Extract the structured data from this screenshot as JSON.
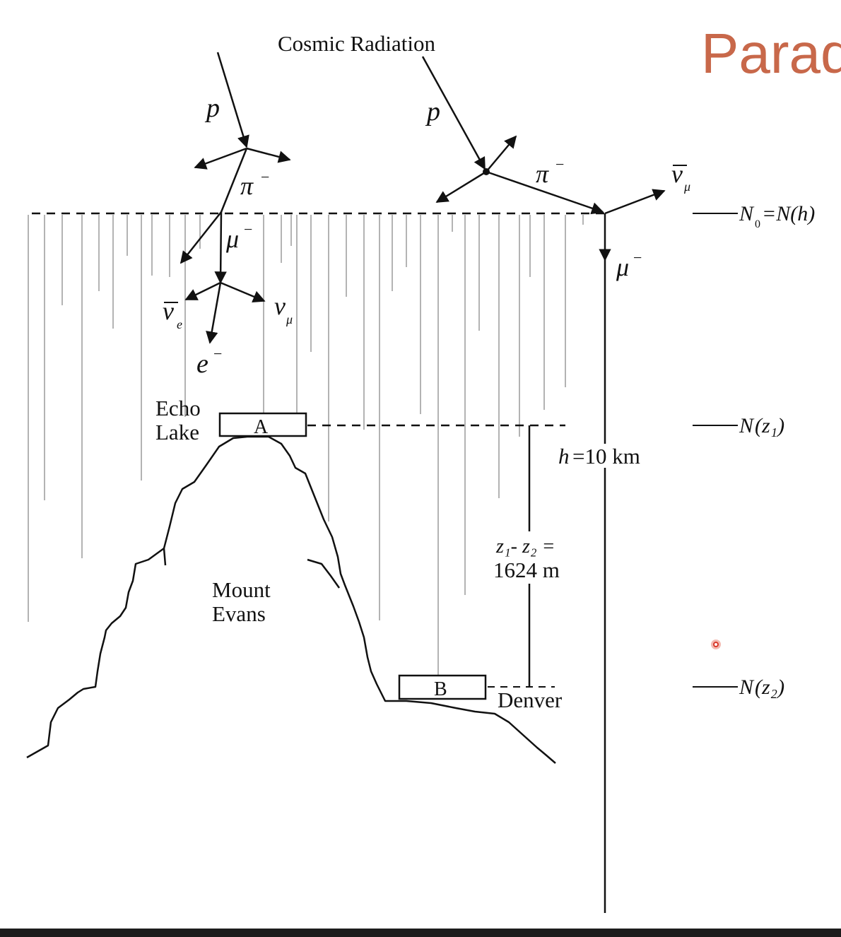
{
  "slide": {
    "title_partial": "Parad"
  },
  "labels": {
    "cosmic_radiation": "Cosmic Radiation",
    "proton": "p",
    "pion": "π",
    "minus": "−",
    "muon": "μ",
    "nu": "ν",
    "sub_e": "e",
    "sub_mu": "μ",
    "electron": "e",
    "echo": "Echo",
    "lake": "Lake",
    "detector_a": "A",
    "detector_b": "B",
    "mount": "Mount",
    "evans": "Evans",
    "denver": "Denver",
    "height_h": "h",
    "height_value": "=10 km",
    "dz_top": "z₁- z₂ =",
    "dz_value": "1624 m",
    "N": "N",
    "sub_0": "0",
    "n0_rest": "=N(h)",
    "nz1": "(z₁)",
    "nz2": "(z₂)"
  },
  "colors": {
    "title": "#c8684a",
    "ink": "#111111",
    "rain": "#9a9a9a",
    "cursor": "#d9382a"
  }
}
